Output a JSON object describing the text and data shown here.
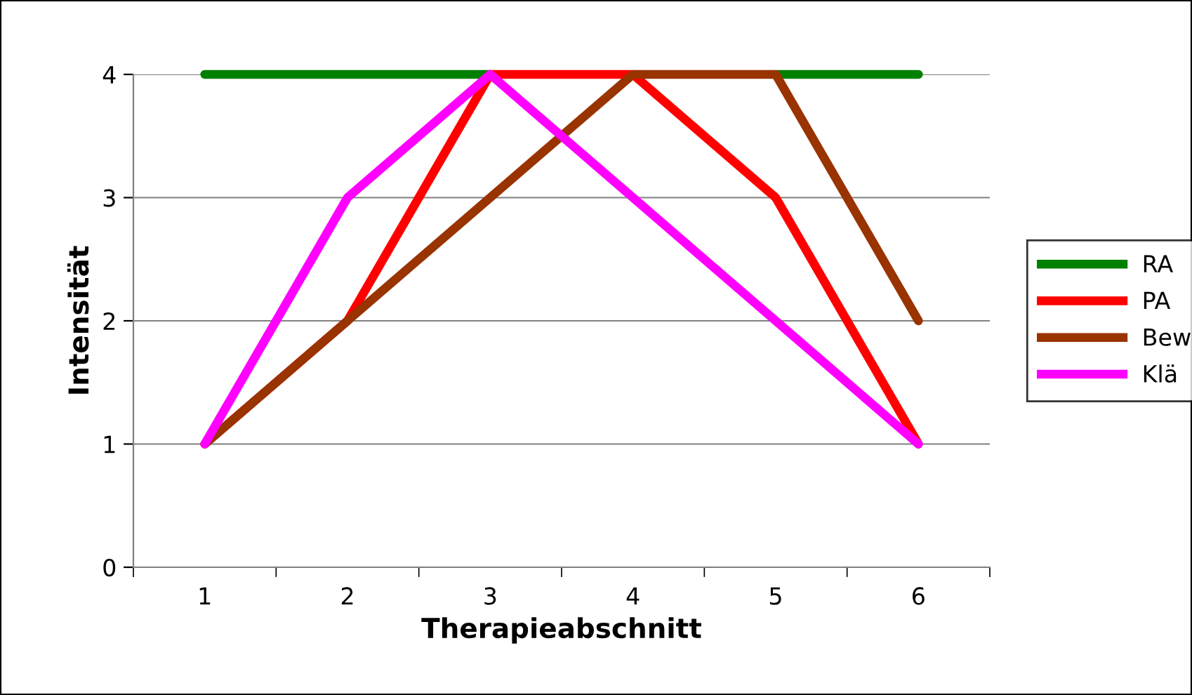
{
  "chart_data": {
    "type": "line",
    "xlabel": "Therapieabschnitt",
    "ylabel": "Intensität",
    "categories": [
      "1",
      "2",
      "3",
      "4",
      "5",
      "6"
    ],
    "series": [
      {
        "name": "RA",
        "color": "#008000",
        "values": [
          4,
          4,
          4,
          null,
          4,
          4
        ]
      },
      {
        "name": "PA",
        "color": "#ff0000",
        "values": [
          1,
          2,
          4,
          4,
          3,
          1
        ]
      },
      {
        "name": "Bew",
        "color": "#993300",
        "values": [
          1,
          2,
          3,
          4,
          4,
          2
        ]
      },
      {
        "name": "Klä",
        "color": "#ff00ff",
        "values": [
          1,
          3,
          4,
          3,
          2,
          1
        ]
      }
    ],
    "ylim": [
      0,
      4
    ],
    "yticks": [
      0,
      1,
      2,
      3,
      4
    ],
    "grid": "y",
    "legend": "right",
    "marker": "none",
    "line_style": "solid"
  }
}
